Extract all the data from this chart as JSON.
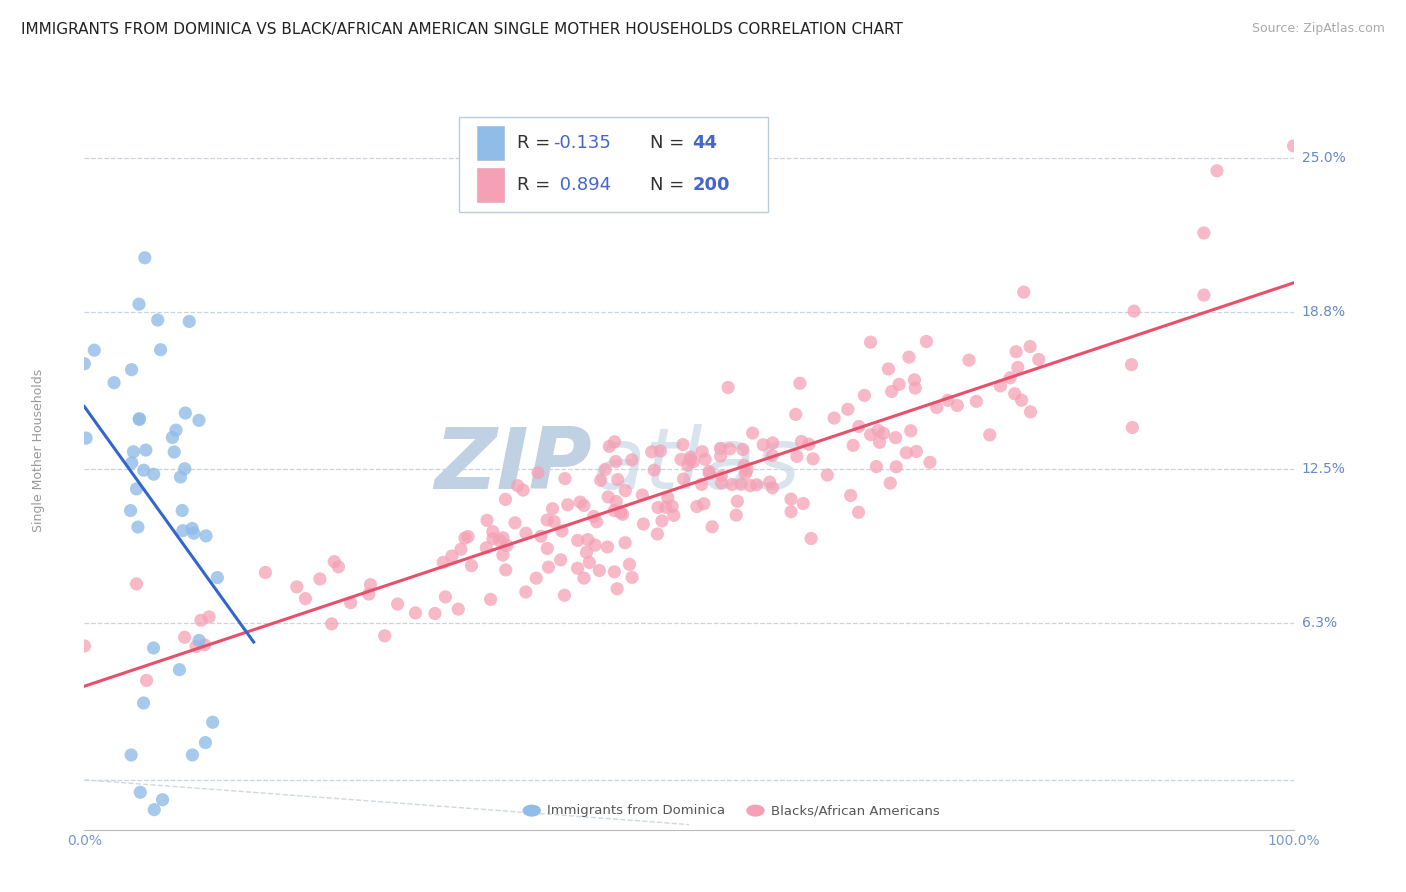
{
  "title": "IMMIGRANTS FROM DOMINICA VS BLACK/AFRICAN AMERICAN SINGLE MOTHER HOUSEHOLDS CORRELATION CHART",
  "source": "Source: ZipAtlas.com",
  "ylabel": "Single Mother Households",
  "r_blue": -0.135,
  "n_blue": 44,
  "r_pink": 0.894,
  "n_pink": 200,
  "legend_label_blue": "Immigrants from Dominica",
  "legend_label_pink": "Blacks/African Americans",
  "xlim": [
    0.0,
    1.0
  ],
  "ylim": [
    -0.02,
    0.285
  ],
  "plot_ylim": [
    -0.02,
    0.285
  ],
  "ytick_vals": [
    0.063,
    0.125,
    0.188,
    0.25
  ],
  "ytick_labels": [
    "6.3%",
    "12.5%",
    "18.8%",
    "25.0%"
  ],
  "xtick_vals": [
    0.0,
    1.0
  ],
  "xtick_labels": [
    "0.0%",
    "100.0%"
  ],
  "background_color": "#ffffff",
  "scatter_color_blue": "#90bce8",
  "scatter_color_pink": "#f5a0b5",
  "line_color_blue": "#3366cc",
  "line_color_pink": "#e8506a",
  "diag_color": "#d0d8e0",
  "grid_color": "#c8d4e0",
  "title_color": "#222222",
  "tick_color": "#7799cc",
  "annotation_color": "#6688cc",
  "watermark_color": "#ccd8e8",
  "legend_r_color": "#4466cc",
  "title_fontsize": 11,
  "source_fontsize": 9,
  "legend_fontsize": 13,
  "label_fontsize": 9,
  "tick_fontsize": 10,
  "seed": 42
}
